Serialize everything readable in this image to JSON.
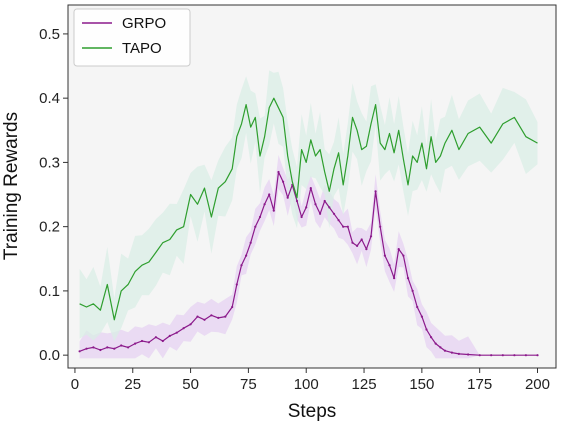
{
  "colors": {
    "plot_background": "#f5f5f5",
    "frame": "#333333",
    "grpo": "#8b1a8b",
    "grpo_band": "#e6d2f2",
    "tapo": "#2e9e2e",
    "tapo_band": "#d9eee6"
  },
  "chart_data": {
    "type": "line",
    "xlabel": "Steps",
    "ylabel": "Training Rewards",
    "xlim": [
      -3,
      208
    ],
    "ylim": [
      -0.02,
      0.545
    ],
    "xticks": [
      0,
      25,
      50,
      75,
      100,
      125,
      150,
      175,
      200
    ],
    "yticks": [
      0.0,
      0.1,
      0.2,
      0.3,
      0.4,
      0.5
    ],
    "ytick_labels": [
      "0.0",
      "0.1",
      "0.2",
      "0.3",
      "0.4",
      "0.5"
    ],
    "grid": false,
    "legend_position": "top-left",
    "series": [
      {
        "name": "GRPO",
        "color": "#8b1a8b",
        "band_spread": 0.022,
        "x": [
          2,
          5,
          8,
          11,
          14,
          17,
          20,
          23,
          26,
          29,
          32,
          35,
          38,
          41,
          44,
          47,
          50,
          53,
          56,
          59,
          62,
          65,
          68,
          70,
          72,
          74,
          76,
          78,
          80,
          82,
          84,
          86,
          88,
          90,
          92,
          94,
          96,
          98,
          100,
          102,
          104,
          106,
          108,
          110,
          112,
          114,
          116,
          118,
          120,
          122,
          124,
          126,
          128,
          130,
          132,
          134,
          136,
          138,
          140,
          142,
          144,
          146,
          148,
          150,
          152,
          154,
          156,
          158,
          160,
          163,
          166,
          170,
          175,
          180,
          185,
          190,
          195,
          200
        ],
        "values": [
          0.006,
          0.01,
          0.012,
          0.008,
          0.012,
          0.01,
          0.015,
          0.012,
          0.018,
          0.022,
          0.02,
          0.028,
          0.022,
          0.03,
          0.035,
          0.042,
          0.048,
          0.06,
          0.055,
          0.062,
          0.058,
          0.06,
          0.075,
          0.11,
          0.14,
          0.155,
          0.175,
          0.2,
          0.215,
          0.235,
          0.25,
          0.225,
          0.285,
          0.27,
          0.245,
          0.265,
          0.24,
          0.215,
          0.23,
          0.26,
          0.235,
          0.22,
          0.24,
          0.23,
          0.22,
          0.21,
          0.2,
          0.2,
          0.175,
          0.17,
          0.18,
          0.165,
          0.185,
          0.255,
          0.2,
          0.155,
          0.14,
          0.12,
          0.165,
          0.155,
          0.12,
          0.1,
          0.075,
          0.06,
          0.04,
          0.028,
          0.018,
          0.012,
          0.007,
          0.004,
          0.002,
          0.001,
          0.0,
          0.0,
          0.0,
          0.0,
          0.0,
          0.0
        ]
      },
      {
        "name": "TAPO",
        "color": "#2e9e2e",
        "band_spread": 0.045,
        "x": [
          2,
          5,
          8,
          11,
          14,
          17,
          20,
          23,
          26,
          29,
          32,
          35,
          38,
          41,
          44,
          47,
          50,
          53,
          56,
          59,
          62,
          65,
          68,
          70,
          72,
          74,
          76,
          78,
          80,
          82,
          84,
          86,
          88,
          90,
          92,
          94,
          96,
          98,
          100,
          102,
          104,
          106,
          108,
          110,
          112,
          114,
          116,
          118,
          120,
          122,
          124,
          126,
          128,
          130,
          132,
          134,
          136,
          138,
          140,
          142,
          144,
          146,
          148,
          150,
          152,
          154,
          156,
          158,
          160,
          163,
          166,
          170,
          175,
          180,
          185,
          190,
          195,
          200
        ],
        "values": [
          0.08,
          0.075,
          0.08,
          0.07,
          0.11,
          0.055,
          0.1,
          0.11,
          0.13,
          0.14,
          0.145,
          0.16,
          0.175,
          0.18,
          0.195,
          0.2,
          0.25,
          0.235,
          0.26,
          0.215,
          0.26,
          0.27,
          0.29,
          0.34,
          0.36,
          0.39,
          0.355,
          0.37,
          0.31,
          0.34,
          0.385,
          0.4,
          0.385,
          0.37,
          0.31,
          0.27,
          0.245,
          0.32,
          0.3,
          0.335,
          0.31,
          0.32,
          0.285,
          0.255,
          0.29,
          0.315,
          0.265,
          0.31,
          0.37,
          0.35,
          0.32,
          0.325,
          0.36,
          0.39,
          0.33,
          0.32,
          0.345,
          0.315,
          0.35,
          0.305,
          0.265,
          0.31,
          0.3,
          0.33,
          0.29,
          0.34,
          0.3,
          0.31,
          0.33,
          0.35,
          0.32,
          0.345,
          0.355,
          0.33,
          0.36,
          0.37,
          0.34,
          0.33
        ]
      }
    ]
  }
}
